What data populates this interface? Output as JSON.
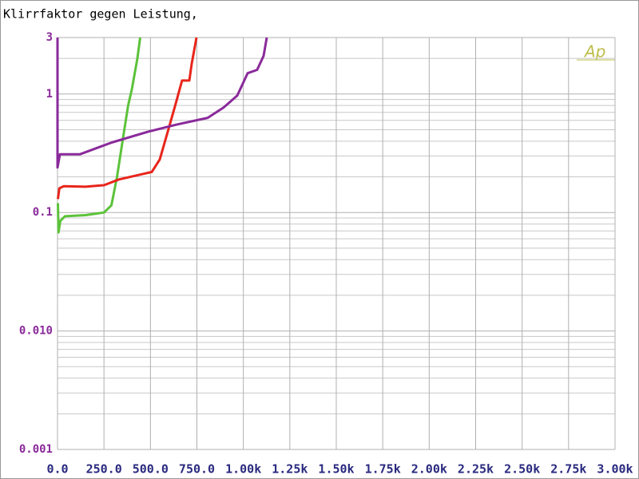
{
  "chart_data": {
    "type": "line",
    "title": "Klirrfaktor gegen Leistung,",
    "logo": "Ap",
    "log_y": true,
    "grid": true,
    "xlim": [
      0,
      3000
    ],
    "ylim": [
      0.001,
      3
    ],
    "xticks": [
      {
        "value": 0,
        "label": "0.0"
      },
      {
        "value": 250,
        "label": "250.0"
      },
      {
        "value": 500,
        "label": "500.0"
      },
      {
        "value": 750,
        "label": "750.0"
      },
      {
        "value": 1000,
        "label": "1.00k"
      },
      {
        "value": 1250,
        "label": "1.25k"
      },
      {
        "value": 1500,
        "label": "1.50k"
      },
      {
        "value": 1750,
        "label": "1.75k"
      },
      {
        "value": 2000,
        "label": "2.00k"
      },
      {
        "value": 2250,
        "label": "2.25k"
      },
      {
        "value": 2500,
        "label": "2.50k"
      },
      {
        "value": 2750,
        "label": "2.75k"
      },
      {
        "value": 3000,
        "label": "3.00k"
      }
    ],
    "yticks": [
      3,
      1,
      0.1,
      {
        "value": 0.01,
        "label": "0.010"
      },
      0.001
    ],
    "y_minor_gridlines": [
      0.002,
      0.003,
      0.004,
      0.005,
      0.006,
      0.007,
      0.008,
      0.009,
      0.02,
      0.03,
      0.04,
      0.05,
      0.06,
      0.07,
      0.08,
      0.09,
      0.2,
      0.3,
      0.4,
      0.5,
      0.6,
      0.7,
      0.8,
      0.9,
      2
    ],
    "series": [
      {
        "color": "#5cc23a",
        "x": [
          2,
          5,
          15,
          40,
          150,
          250,
          290,
          320,
          350,
          380,
          400,
          430,
          445
        ],
        "values": [
          0.12,
          0.068,
          0.085,
          0.093,
          0.095,
          0.1,
          0.115,
          0.2,
          0.4,
          0.8,
          1.1,
          2,
          3
        ]
      },
      {
        "color": "#e8251b",
        "x": [
          2,
          10,
          34,
          150,
          250,
          330,
          450,
          507,
          550,
          593,
          636,
          670,
          709,
          722,
          748
        ],
        "values": [
          0.13,
          0.16,
          0.167,
          0.165,
          0.17,
          0.19,
          0.21,
          0.22,
          0.28,
          0.48,
          0.83,
          1.3,
          1.3,
          1.8,
          3
        ]
      },
      {
        "color": "#8a2a9a",
        "x": [
          0,
          0,
          13,
          120,
          292,
          486,
          636,
          808,
          894,
          967,
          1023,
          1074,
          1109,
          1126
        ],
        "values": [
          3,
          0.24,
          0.31,
          0.31,
          0.39,
          0.48,
          0.55,
          0.63,
          0.77,
          0.97,
          1.5,
          1.6,
          2.1,
          3
        ]
      }
    ]
  }
}
